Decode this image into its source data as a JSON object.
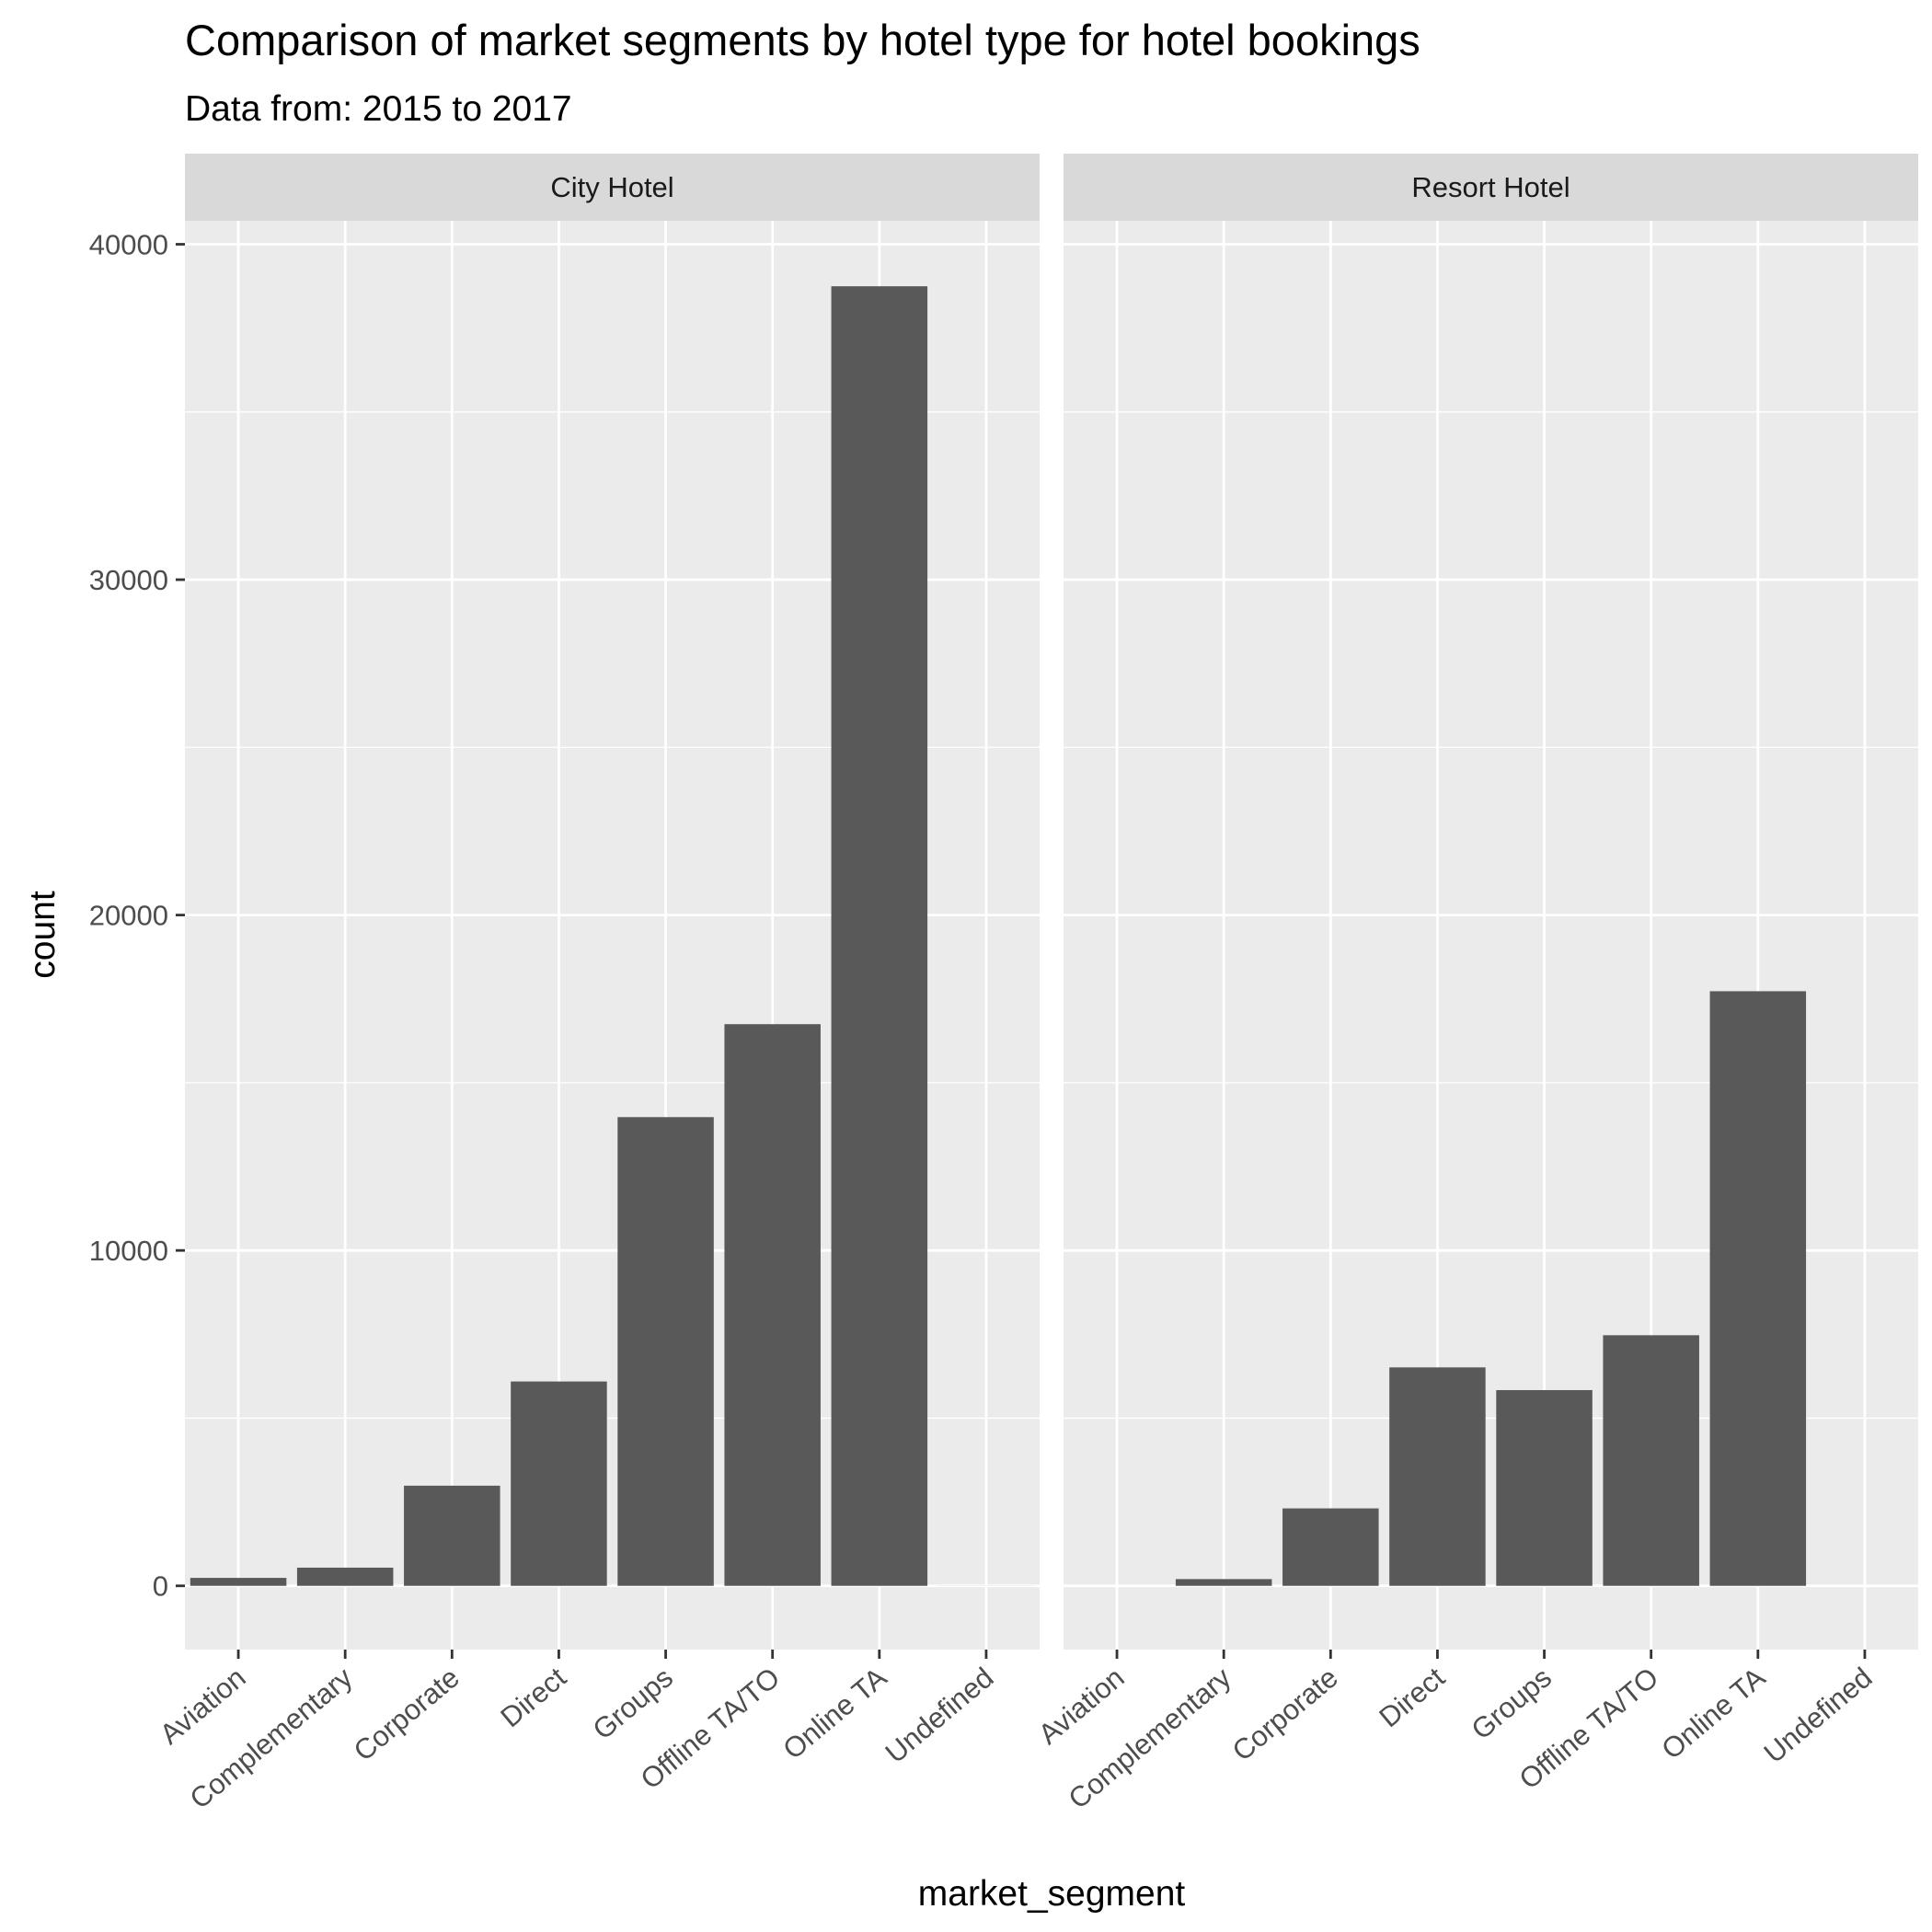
{
  "chart_data": {
    "type": "bar",
    "title": "Comparison of market segments by hotel type for hotel bookings",
    "subtitle": "Data from: 2015 to 2017",
    "xlabel": "market_segment",
    "ylabel": "count",
    "ylim": [
      -1900,
      40700
    ],
    "yticks": [
      0,
      10000,
      20000,
      30000,
      40000
    ],
    "ytick_labels": [
      "0",
      "10000",
      "20000",
      "30000",
      "40000"
    ],
    "grid": true,
    "categories": [
      "Aviation",
      "Complementary",
      "Corporate",
      "Direct",
      "Groups",
      "Offline TA/TO",
      "Online TA",
      "Undefined"
    ],
    "facets": [
      {
        "name": "City Hotel",
        "values": [
          237,
          542,
          2986,
          6093,
          13975,
          16747,
          38748,
          2
        ]
      },
      {
        "name": "Resort Hotel",
        "values": [
          0,
          201,
          2309,
          6513,
          5836,
          7472,
          17729,
          0
        ]
      }
    ],
    "colors": {
      "bar": "#595959",
      "panel": "#ebebeb",
      "strip": "#d9d9d9",
      "grid": "#ffffff"
    }
  }
}
